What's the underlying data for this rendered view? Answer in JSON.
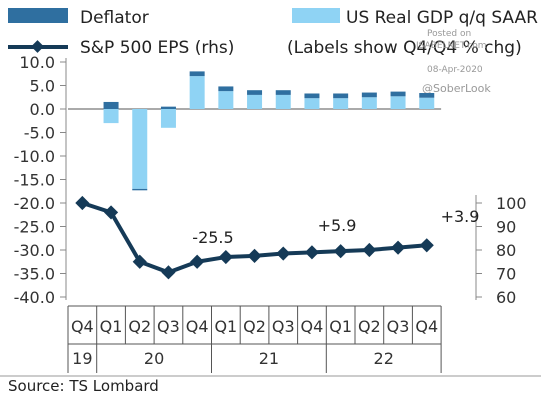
{
  "chart_data": {
    "type": "bar+line",
    "legend": {
      "deflator": "Deflator",
      "gdp": "US Real GDP q/q SAAR",
      "eps": "S&P 500 EPS (rhs)",
      "note": "(Labels show Q4/Q4 % chg)"
    },
    "colors": {
      "deflator": "#2f6fa0",
      "gdp": "#8fd3f4",
      "eps": "#153a57"
    },
    "quarters": [
      "Q4",
      "Q1",
      "Q2",
      "Q3",
      "Q4",
      "Q1",
      "Q2",
      "Q3",
      "Q4",
      "Q1",
      "Q2",
      "Q3",
      "Q4"
    ],
    "years": [
      {
        "label": "19",
        "span": 1
      },
      {
        "label": "20",
        "span": 4
      },
      {
        "label": "21",
        "span": 4
      },
      {
        "label": "22",
        "span": 4
      }
    ],
    "series": [
      {
        "name": "US Real GDP q/q SAAR",
        "values": [
          null,
          -3.0,
          -17.0,
          -4.0,
          7.0,
          3.8,
          3.0,
          3.0,
          2.3,
          2.3,
          2.5,
          2.7,
          2.4
        ]
      },
      {
        "name": "Deflator",
        "values": [
          null,
          1.5,
          -0.3,
          0.5,
          1.0,
          1.0,
          1.0,
          1.0,
          1.0,
          1.0,
          1.0,
          1.0,
          1.0
        ]
      },
      {
        "name": "S&P 500 EPS (rhs)",
        "values": [
          100,
          96,
          75,
          70.5,
          75,
          77,
          77.5,
          78.5,
          79,
          79.5,
          80,
          81,
          82
        ]
      }
    ],
    "left_axis": {
      "ticks": [
        "10.0",
        "5.0",
        "0.0",
        "-5.0",
        "-10.0",
        "-15.0",
        "-20.0",
        "-25.0",
        "-30.0",
        "-35.0",
        "-40.0"
      ],
      "min": -40,
      "max": 10
    },
    "right_axis": {
      "ticks": [
        "100",
        "90",
        "80",
        "70",
        "60"
      ],
      "min": 60,
      "max": 100
    },
    "annotations": [
      {
        "text": "-25.5",
        "quarter_index": 4
      },
      {
        "text": "+5.9",
        "quarter_index": 8
      },
      {
        "text": "+3.9",
        "quarter_index": 12
      }
    ],
    "source": "Source: TS Lombard",
    "watermark": {
      "line1": "Posted on",
      "line2": "ISABELNET.com",
      "date": "08-Apr-2020",
      "handle": "@SoberLook"
    }
  }
}
